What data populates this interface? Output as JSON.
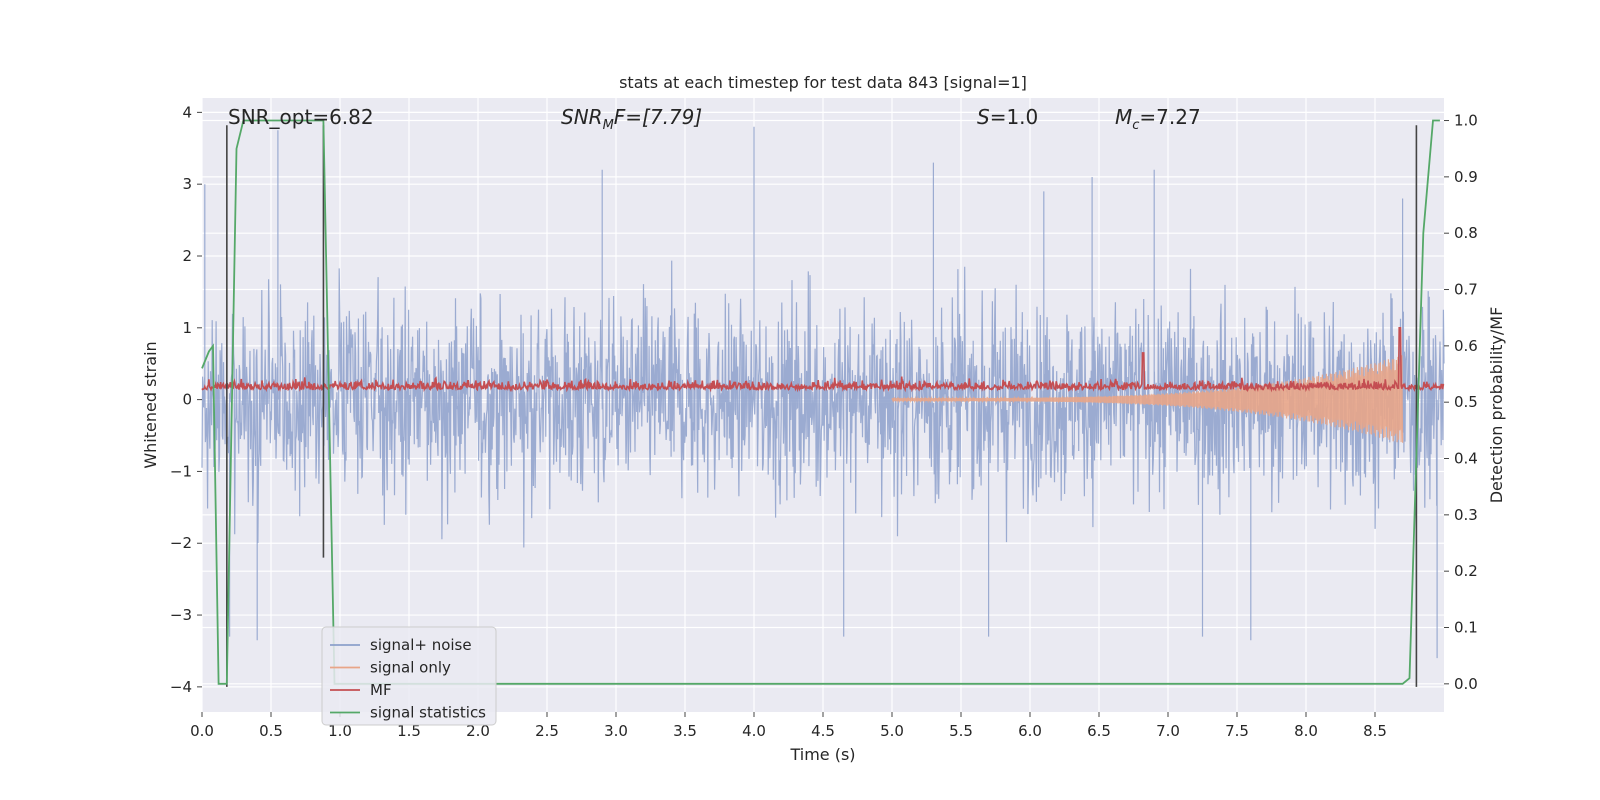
{
  "chart_data": {
    "type": "line",
    "title": "stats at each timestep for test data 843 [signal=1]",
    "xlabel": "Time (s)",
    "ylabel": "Whitened strain",
    "ylabel_right": "Detection probability/MF",
    "xlim": [
      0.0,
      9.0
    ],
    "ylim": [
      -4.35,
      4.2
    ],
    "ylim_right": [
      -0.05,
      1.04
    ],
    "grid": true,
    "x_ticks": [
      "0.0",
      "0.5",
      "1.0",
      "1.5",
      "2.0",
      "2.5",
      "3.0",
      "3.5",
      "4.0",
      "4.5",
      "5.0",
      "5.5",
      "6.0",
      "6.5",
      "7.0",
      "7.5",
      "8.0",
      "8.5"
    ],
    "y_ticks": [
      "4",
      "3",
      "2",
      "1",
      "0",
      "−1",
      "−2",
      "−3",
      "−4"
    ],
    "y_ticks_right": [
      "1.0",
      "0.9",
      "0.8",
      "0.7",
      "0.6",
      "0.5",
      "0.4",
      "0.3",
      "0.2",
      "0.1",
      "0.0"
    ],
    "annotations": {
      "snr_opt": "SNR_opt=6.82",
      "snr_mf_sym": "SNR",
      "snr_mf_sub": "M",
      "snr_mf_rest": "F=[7.79]",
      "s_sym": "S",
      "s_rest": "=1.0",
      "mc_sym": "M",
      "mc_sub": "c",
      "mc_rest": "=7.27"
    },
    "legend": {
      "placement": "lower-left",
      "entries": [
        "signal+ noise",
        "signal only",
        "MF",
        "signal statistics"
      ]
    },
    "series": [
      {
        "name": "signal+ noise",
        "axis": "left",
        "color": "#8da0cb",
        "description_type": "dense noise",
        "envelope_peaks": [
          {
            "x": 0.02,
            "y": 3.0
          },
          {
            "x": 0.55,
            "y": 3.75
          },
          {
            "x": 0.2,
            "y": -3.3
          },
          {
            "x": 0.4,
            "y": -3.35
          },
          {
            "x": 2.9,
            "y": 3.2
          },
          {
            "x": 4.0,
            "y": 3.8
          },
          {
            "x": 4.65,
            "y": -3.3
          },
          {
            "x": 5.3,
            "y": 3.3
          },
          {
            "x": 5.7,
            "y": -3.3
          },
          {
            "x": 6.1,
            "y": 2.9
          },
          {
            "x": 6.45,
            "y": 3.1
          },
          {
            "x": 6.9,
            "y": 3.2
          },
          {
            "x": 7.25,
            "y": -3.3
          },
          {
            "x": 7.6,
            "y": -3.35
          },
          {
            "x": 8.7,
            "y": 2.8
          },
          {
            "x": 8.95,
            "y": -3.6
          }
        ]
      },
      {
        "name": "signal only",
        "axis": "left",
        "color": "#e8a588",
        "chirp_start": 5.0,
        "chirp_peak_x": 8.7,
        "chirp_peak_amplitude": 0.6
      },
      {
        "name": "MF",
        "axis": "left",
        "color": "#c44e52",
        "baseline": 0.17,
        "spikes": [
          {
            "x": 6.82,
            "y": 0.65
          },
          {
            "x": 8.68,
            "y": 1.0
          }
        ]
      },
      {
        "name": "signal statistics",
        "axis": "right",
        "color": "#55a868",
        "x": [
          0.0,
          0.05,
          0.08,
          0.12,
          0.18,
          0.25,
          0.3,
          0.86,
          0.88,
          0.92,
          0.96,
          1.0,
          8.7,
          8.75,
          8.85,
          8.92,
          8.97
        ],
        "y": [
          0.56,
          0.59,
          0.6,
          0.0,
          0.0,
          0.95,
          1.0,
          1.0,
          1.0,
          0.5,
          0.0,
          0.0,
          0.0,
          0.01,
          0.8,
          1.0,
          1.0
        ]
      }
    ],
    "vertical_markers": [
      {
        "x": 0.18,
        "y_top": 3.82,
        "y_bottom": -4.0,
        "color": "#444444"
      },
      {
        "x": 0.88,
        "y_top": 3.82,
        "y_bottom": -2.2,
        "color": "#444444"
      },
      {
        "x": 8.8,
        "y_top": 3.82,
        "y_bottom": -4.0,
        "color": "#444444"
      }
    ]
  }
}
